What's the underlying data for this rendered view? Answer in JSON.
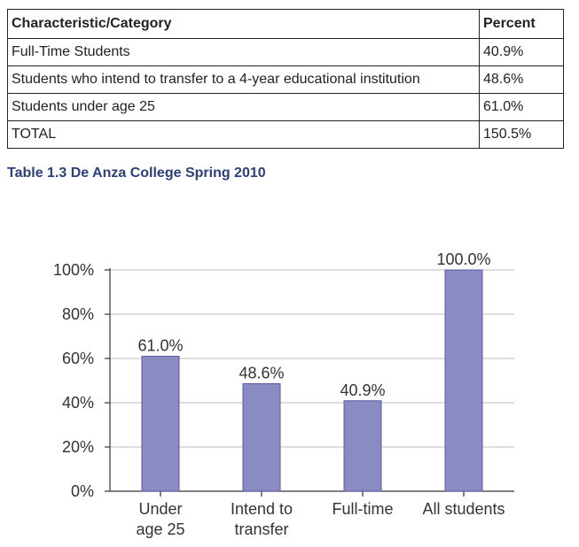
{
  "table": {
    "headers": [
      "Characteristic/Category",
      "Percent"
    ],
    "rows": [
      [
        "Full-Time Students",
        "40.9%"
      ],
      [
        "Students who intend to transfer to a 4-year educational institution",
        "48.6%"
      ],
      [
        "Students under age 25",
        "61.0%"
      ],
      [
        "TOTAL",
        "150.5%"
      ]
    ]
  },
  "caption": "Table 1.3 De Anza College Spring 2010",
  "chart_data": {
    "type": "bar",
    "categories": [
      [
        "Under",
        "age 25"
      ],
      [
        "Intend to",
        "transfer"
      ],
      [
        "Full-time"
      ],
      [
        "All students"
      ]
    ],
    "values": [
      61.0,
      48.6,
      40.9,
      100.0
    ],
    "value_labels": [
      "61.0%",
      "48.6%",
      "40.9%",
      "100.0%"
    ],
    "yticks": [
      "0%",
      "20%",
      "40%",
      "60%",
      "80%",
      "100%"
    ],
    "ylim": [
      0,
      100
    ],
    "grid": true,
    "bar_color": "#8b8bc3",
    "bar_edge_color": "#5a5aa0"
  }
}
